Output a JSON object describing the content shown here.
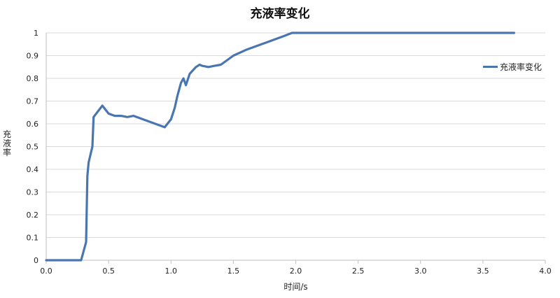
{
  "chart_data": {
    "type": "line",
    "title": "充液率变化",
    "xlabel": "时间/s",
    "ylabel": "充液率",
    "xlim": [
      0.0,
      4.0
    ],
    "ylim": [
      0,
      1
    ],
    "x_ticks": [
      "0.0",
      "0.5",
      "1.0",
      "1.5",
      "2.0",
      "2.5",
      "3.0",
      "3.5",
      "4.0"
    ],
    "y_ticks": [
      "0",
      "0.1",
      "0.2",
      "0.3",
      "0.4",
      "0.5",
      "0.6",
      "0.7",
      "0.8",
      "0.9",
      "1"
    ],
    "grid": "horizontal",
    "legend_position": "right",
    "series": [
      {
        "name": "充液率变化",
        "color": "#4a76b0",
        "x": [
          0.0,
          0.28,
          0.32,
          0.33,
          0.34,
          0.37,
          0.38,
          0.45,
          0.5,
          0.55,
          0.6,
          0.65,
          0.7,
          0.75,
          0.8,
          0.85,
          0.9,
          0.95,
          1.0,
          1.03,
          1.05,
          1.08,
          1.1,
          1.12,
          1.15,
          1.2,
          1.23,
          1.25,
          1.3,
          1.35,
          1.4,
          1.45,
          1.5,
          1.6,
          1.7,
          1.8,
          1.9,
          1.97,
          2.5,
          3.0,
          3.5,
          3.75
        ],
        "y": [
          0,
          0,
          0.08,
          0.37,
          0.43,
          0.5,
          0.63,
          0.68,
          0.645,
          0.635,
          0.635,
          0.63,
          0.635,
          0.625,
          0.615,
          0.605,
          0.595,
          0.585,
          0.62,
          0.67,
          0.72,
          0.78,
          0.8,
          0.77,
          0.82,
          0.85,
          0.86,
          0.855,
          0.85,
          0.855,
          0.86,
          0.88,
          0.9,
          0.925,
          0.945,
          0.965,
          0.985,
          1.0,
          1.0,
          1.0,
          1.0,
          1.0
        ]
      }
    ]
  }
}
